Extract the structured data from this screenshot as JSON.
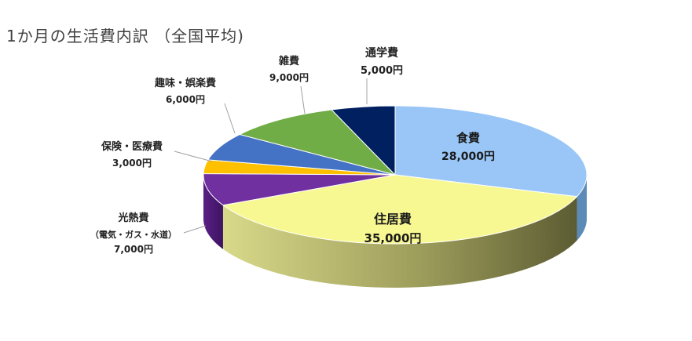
{
  "chart_data": {
    "type": "pie",
    "title": "1か月の生活費内訳 （全国平均)",
    "slices": [
      {
        "label": "食費",
        "value_label": "28,000円",
        "value": 28000,
        "color": "#99c6f6"
      },
      {
        "label": "住居費",
        "value_label": "35,000円",
        "value": 35000,
        "color": "#f8f892"
      },
      {
        "label": "光熱費",
        "sub_label": "（電気・ガス・水道）",
        "value_label": "7,000円",
        "value": 7000,
        "color": "#7030a0"
      },
      {
        "label": "保険・医療費",
        "value_label": "3,000円",
        "value": 3000,
        "color": "#ffc000"
      },
      {
        "label": "趣味・娯楽費",
        "value_label": "6,000円",
        "value": 6000,
        "color": "#4472c4"
      },
      {
        "label": "雑費",
        "value_label": "9,000円",
        "value": 9000,
        "color": "#70ad47"
      },
      {
        "label": "通学費",
        "value_label": "5,000円",
        "value": 5000,
        "color": "#002060"
      }
    ]
  }
}
